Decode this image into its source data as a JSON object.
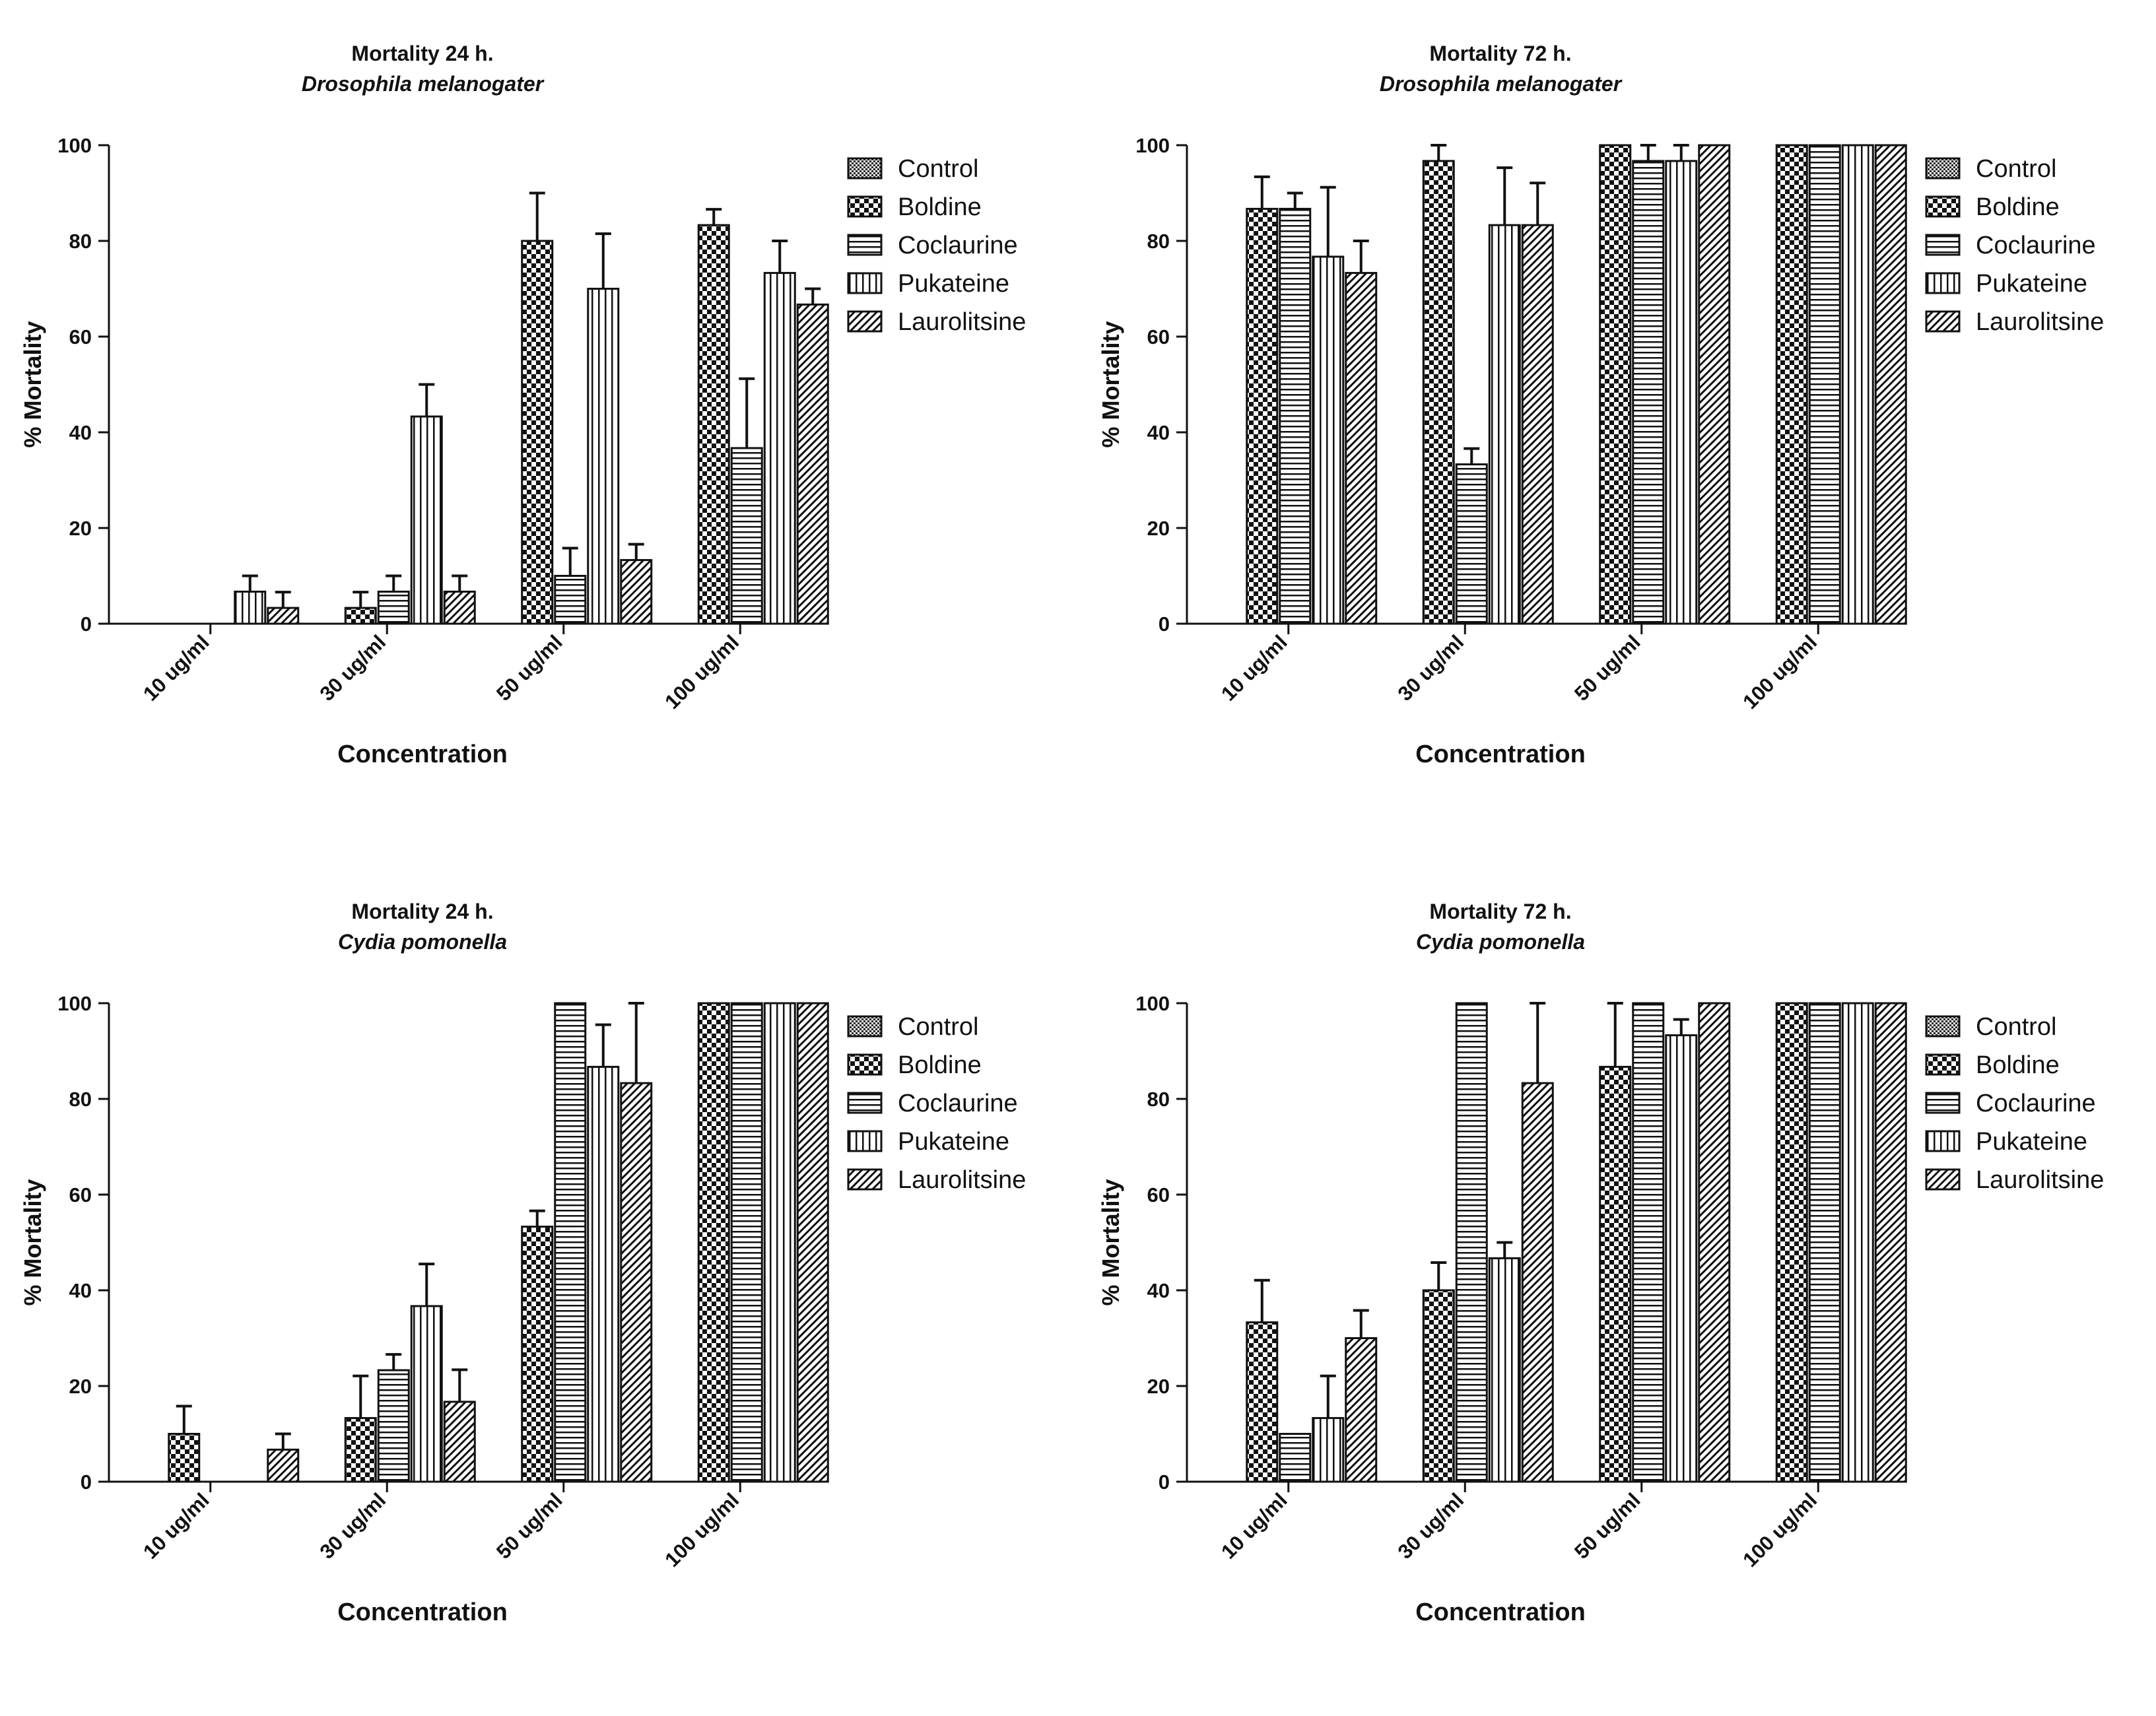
{
  "figure": {
    "legend_labels": [
      "Control",
      "Boldine",
      "Coclaurine",
      "Pukateine",
      "Laurolitsine"
    ]
  },
  "chart_data": [
    {
      "type": "bar",
      "title": "Mortality 24 h.",
      "subtitle": "Drosophila melanogater",
      "xlabel": "Concentration",
      "ylabel": "% Mortality",
      "ylim": [
        0,
        100
      ],
      "yticks": [
        0,
        20,
        40,
        60,
        80,
        100
      ],
      "categories": [
        "10 ug/ml",
        "30 ug/ml",
        "50 ug/ml",
        "100 ug/ml"
      ],
      "legend_position": "right",
      "series": [
        {
          "name": "Control",
          "values": [
            0,
            0,
            0,
            0
          ],
          "errors": [
            0,
            0,
            0,
            0
          ]
        },
        {
          "name": "Boldine",
          "values": [
            0,
            3.3,
            80,
            83.3
          ],
          "errors": [
            0,
            3.3,
            10,
            3.3
          ]
        },
        {
          "name": "Coclaurine",
          "values": [
            0,
            6.7,
            10,
            36.7
          ],
          "errors": [
            0,
            3.3,
            5.8,
            14.5
          ]
        },
        {
          "name": "Pukateine",
          "values": [
            6.7,
            43.3,
            70,
            73.3
          ],
          "errors": [
            3.3,
            6.7,
            11.5,
            6.7
          ]
        },
        {
          "name": "Laurolitsine",
          "values": [
            3.3,
            6.7,
            13.3,
            66.7
          ],
          "errors": [
            3.3,
            3.3,
            3.3,
            3.3
          ]
        }
      ]
    },
    {
      "type": "bar",
      "title": "Mortality 72 h.",
      "subtitle": "Drosophila melanogater",
      "xlabel": "Concentration",
      "ylabel": "% Mortality",
      "ylim": [
        0,
        100
      ],
      "yticks": [
        0,
        20,
        40,
        60,
        80,
        100
      ],
      "categories": [
        "10 ug/ml",
        "30 ug/ml",
        "50 ug/ml",
        "100 ug/ml"
      ],
      "legend_position": "right",
      "series": [
        {
          "name": "Control",
          "values": [
            0,
            0,
            0,
            0
          ],
          "errors": [
            0,
            0,
            0,
            0
          ]
        },
        {
          "name": "Boldine",
          "values": [
            86.7,
            96.7,
            100,
            100
          ],
          "errors": [
            6.7,
            3.3,
            0,
            0
          ]
        },
        {
          "name": "Coclaurine",
          "values": [
            86.7,
            33.3,
            96.7,
            100
          ],
          "errors": [
            3.3,
            3.3,
            3.3,
            0
          ]
        },
        {
          "name": "Pukateine",
          "values": [
            76.7,
            83.3,
            96.7,
            100
          ],
          "errors": [
            14.5,
            12,
            3.3,
            0
          ]
        },
        {
          "name": "Laurolitsine",
          "values": [
            73.3,
            83.3,
            100,
            100
          ],
          "errors": [
            6.7,
            8.8,
            0,
            0
          ]
        }
      ]
    },
    {
      "type": "bar",
      "title": "Mortality 24 h.",
      "subtitle": "Cydia pomonella",
      "xlabel": "Concentration",
      "ylabel": "% Mortality",
      "ylim": [
        0,
        100
      ],
      "yticks": [
        0,
        20,
        40,
        60,
        80,
        100
      ],
      "categories": [
        "10 ug/ml",
        "30 ug/ml",
        "50 ug/ml",
        "100 ug/ml"
      ],
      "legend_position": "right",
      "series": [
        {
          "name": "Control",
          "values": [
            0,
            0,
            0,
            0
          ],
          "errors": [
            0,
            0,
            0,
            0
          ]
        },
        {
          "name": "Boldine",
          "values": [
            10,
            13.3,
            53.3,
            100
          ],
          "errors": [
            5.8,
            8.8,
            3.3,
            0
          ]
        },
        {
          "name": "Coclaurine",
          "values": [
            0,
            23.3,
            100,
            100
          ],
          "errors": [
            0,
            3.3,
            0,
            0
          ]
        },
        {
          "name": "Pukateine",
          "values": [
            0,
            36.7,
            86.7,
            100
          ],
          "errors": [
            0,
            8.8,
            8.8,
            0
          ]
        },
        {
          "name": "Laurolitsine",
          "values": [
            6.7,
            16.7,
            83.3,
            100
          ],
          "errors": [
            3.3,
            6.7,
            16.7,
            0
          ]
        }
      ]
    },
    {
      "type": "bar",
      "title": "Mortality 72 h.",
      "subtitle": "Cydia pomonella",
      "xlabel": "Concentration",
      "ylabel": "% Mortality",
      "ylim": [
        0,
        100
      ],
      "yticks": [
        0,
        20,
        40,
        60,
        80,
        100
      ],
      "categories": [
        "10 ug/ml",
        "30 ug/ml",
        "50 ug/ml",
        "100 ug/ml"
      ],
      "legend_position": "right",
      "series": [
        {
          "name": "Control",
          "values": [
            0,
            0,
            0,
            0
          ],
          "errors": [
            0,
            0,
            0,
            0
          ]
        },
        {
          "name": "Boldine",
          "values": [
            33.3,
            40,
            86.7,
            100
          ],
          "errors": [
            8.8,
            5.8,
            13.3,
            0
          ]
        },
        {
          "name": "Coclaurine",
          "values": [
            10,
            100,
            100,
            100
          ],
          "errors": [
            0,
            0,
            0,
            0
          ]
        },
        {
          "name": "Pukateine",
          "values": [
            13.3,
            46.7,
            93.3,
            100
          ],
          "errors": [
            8.8,
            3.3,
            3.3,
            0
          ]
        },
        {
          "name": "Laurolitsine",
          "values": [
            30,
            83.3,
            100,
            100
          ],
          "errors": [
            5.8,
            16.7,
            0,
            0
          ]
        }
      ]
    }
  ]
}
